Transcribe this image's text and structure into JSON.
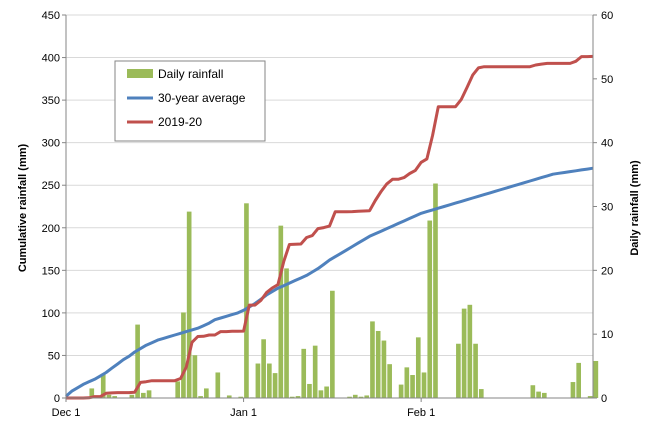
{
  "chart_data": {
    "type": "bar+line",
    "title": "",
    "xlabel": "",
    "ylabel_left": "Cumulative rainfall (mm)",
    "ylabel_right": "Daily rainfall (mm)",
    "x_range_days": [
      0,
      92
    ],
    "ylim_left": [
      0,
      450
    ],
    "ylim_right": [
      0,
      60
    ],
    "yticks_left": [
      "0",
      "50",
      "100",
      "150",
      "200",
      "250",
      "300",
      "350",
      "400",
      "450"
    ],
    "yticks_right": [
      "0",
      "10",
      "20",
      "30",
      "40",
      "50",
      "60"
    ],
    "xticks": [
      {
        "day": 0,
        "label": "Dec 1"
      },
      {
        "day": 31,
        "label": "Jan 1"
      },
      {
        "day": 62,
        "label": "Feb 1"
      }
    ],
    "grid": "horizontal",
    "legend_position": "top-left",
    "legend": [
      "Daily rainfall",
      "30-year average",
      "2019-20"
    ],
    "colors": {
      "bars": "#9bbb59",
      "average": "#4f81bd",
      "season": "#c0504d",
      "grid": "#d9d9d9",
      "axis": "#868686"
    },
    "series": [
      {
        "name": "Daily rainfall",
        "axis": "right",
        "kind": "bar",
        "values": [
          0,
          0,
          0,
          0.2,
          1.5,
          0,
          3.8,
          0.5,
          0.3,
          0,
          0,
          0.5,
          11.5,
          0.8,
          1.2,
          0,
          0,
          0,
          0,
          2.6,
          13.4,
          29.2,
          6.7,
          0.3,
          1.5,
          0,
          4.0,
          0,
          0.4,
          0,
          0.2,
          30.5,
          0.1,
          5.4,
          9.2,
          5.4,
          3.9,
          27.0,
          20.3,
          0.2,
          0.3,
          7.7,
          2.2,
          8.2,
          1.2,
          1.8,
          16.8,
          0,
          0,
          0.2,
          0.5,
          0.2,
          0.4,
          12.0,
          10.5,
          9.0,
          5.3,
          0,
          2.1,
          4.8,
          3.6,
          9.5,
          4.0,
          27.8,
          33.6,
          0,
          0,
          0,
          8.5,
          14.0,
          14.6,
          8.5,
          1.4,
          0,
          0,
          0,
          0,
          0,
          0,
          0,
          0,
          2.0,
          1.0,
          0.8,
          0,
          0,
          0,
          0,
          2.5,
          5.5,
          0,
          0.3,
          5.8
        ]
      },
      {
        "name": "30-year average",
        "axis": "left",
        "kind": "line",
        "points": [
          [
            0,
            2
          ],
          [
            1,
            8
          ],
          [
            2,
            12
          ],
          [
            3,
            16
          ],
          [
            4,
            19
          ],
          [
            5,
            22
          ],
          [
            6,
            26
          ],
          [
            7,
            30
          ],
          [
            8,
            35
          ],
          [
            9,
            40
          ],
          [
            10,
            45
          ],
          [
            11,
            49
          ],
          [
            12,
            54
          ],
          [
            13,
            58
          ],
          [
            14,
            62
          ],
          [
            15,
            65
          ],
          [
            16,
            68
          ],
          [
            17,
            70
          ],
          [
            18,
            72
          ],
          [
            19,
            74
          ],
          [
            20,
            76
          ],
          [
            21,
            78
          ],
          [
            22,
            80
          ],
          [
            23,
            82
          ],
          [
            24,
            85
          ],
          [
            25,
            88
          ],
          [
            26,
            92
          ],
          [
            27,
            94
          ],
          [
            28,
            96
          ],
          [
            29,
            98
          ],
          [
            30,
            100
          ],
          [
            31,
            103
          ],
          [
            32,
            107
          ],
          [
            33,
            111
          ],
          [
            34,
            116
          ],
          [
            35,
            121
          ],
          [
            36,
            125
          ],
          [
            37,
            129
          ],
          [
            38,
            132
          ],
          [
            39,
            135
          ],
          [
            40,
            138
          ],
          [
            41,
            141
          ],
          [
            42,
            144
          ],
          [
            43,
            148
          ],
          [
            44,
            152
          ],
          [
            45,
            157
          ],
          [
            46,
            162
          ],
          [
            47,
            166
          ],
          [
            48,
            170
          ],
          [
            49,
            174
          ],
          [
            50,
            178
          ],
          [
            51,
            182
          ],
          [
            52,
            186
          ],
          [
            53,
            190
          ],
          [
            54,
            193
          ],
          [
            55,
            196
          ],
          [
            56,
            199
          ],
          [
            57,
            202
          ],
          [
            58,
            205
          ],
          [
            59,
            208
          ],
          [
            60,
            211
          ],
          [
            61,
            214
          ],
          [
            62,
            217
          ],
          [
            63,
            219
          ],
          [
            64,
            221
          ],
          [
            65,
            223
          ],
          [
            66,
            225
          ],
          [
            67,
            227
          ],
          [
            68,
            229
          ],
          [
            69,
            231
          ],
          [
            70,
            233
          ],
          [
            71,
            235
          ],
          [
            72,
            237
          ],
          [
            73,
            239
          ],
          [
            74,
            241
          ],
          [
            75,
            243
          ],
          [
            76,
            245
          ],
          [
            77,
            247
          ],
          [
            78,
            249
          ],
          [
            79,
            251
          ],
          [
            80,
            253
          ],
          [
            81,
            255
          ],
          [
            82,
            257
          ],
          [
            83,
            259
          ],
          [
            84,
            261
          ],
          [
            85,
            263
          ],
          [
            86,
            264
          ],
          [
            87,
            265
          ],
          [
            88,
            266
          ],
          [
            89,
            267
          ],
          [
            90,
            268
          ],
          [
            91,
            269
          ],
          [
            92,
            270
          ]
        ]
      },
      {
        "name": "2019-20",
        "axis": "left",
        "kind": "line",
        "points": [
          [
            0,
            0
          ],
          [
            3,
            0
          ],
          [
            4,
            0.2
          ],
          [
            5,
            1.7
          ],
          [
            6,
            1.7
          ],
          [
            7,
            5.5
          ],
          [
            8,
            6
          ],
          [
            9,
            6.3
          ],
          [
            10,
            6.3
          ],
          [
            11,
            6.3
          ],
          [
            12,
            6.8
          ],
          [
            13,
            18.3
          ],
          [
            14,
            19.1
          ],
          [
            15,
            20.3
          ],
          [
            16,
            20.3
          ],
          [
            17,
            20.3
          ],
          [
            18,
            20.3
          ],
          [
            19,
            20.3
          ],
          [
            20,
            22.9
          ],
          [
            21,
            36.3
          ],
          [
            22,
            65.5
          ],
          [
            23,
            72.2
          ],
          [
            24,
            72.5
          ],
          [
            25,
            74
          ],
          [
            26,
            74
          ],
          [
            27,
            78
          ],
          [
            28,
            78
          ],
          [
            29,
            78.4
          ],
          [
            30,
            78.4
          ],
          [
            31,
            78.6
          ],
          [
            32,
            109.1
          ],
          [
            33,
            109.2
          ],
          [
            34,
            114.6
          ],
          [
            35,
            123.8
          ],
          [
            36,
            129.2
          ],
          [
            37,
            133.1
          ],
          [
            38,
            160.1
          ],
          [
            39,
            180.4
          ],
          [
            40,
            180.6
          ],
          [
            41,
            180.9
          ],
          [
            42,
            188.6
          ],
          [
            43,
            190.8
          ],
          [
            44,
            199
          ],
          [
            45,
            200.2
          ],
          [
            46,
            202
          ],
          [
            47,
            218.8
          ],
          [
            48,
            218.8
          ],
          [
            49,
            218.8
          ],
          [
            50,
            219
          ],
          [
            51,
            219.5
          ],
          [
            52,
            219.7
          ],
          [
            53,
            220.1
          ],
          [
            54,
            232.1
          ],
          [
            55,
            242.6
          ],
          [
            56,
            251.6
          ],
          [
            57,
            256.9
          ],
          [
            58,
            256.9
          ],
          [
            59,
            259
          ],
          [
            60,
            263.8
          ],
          [
            61,
            267.4
          ],
          [
            62,
            276.9
          ],
          [
            63,
            280.9
          ],
          [
            64,
            308.7
          ],
          [
            65,
            342.3
          ],
          [
            66,
            342.3
          ],
          [
            67,
            342.3
          ],
          [
            68,
            342.3
          ],
          [
            69,
            350.8
          ],
          [
            70,
            364.8
          ],
          [
            71,
            379.4
          ],
          [
            72,
            387.9
          ],
          [
            73,
            389.3
          ],
          [
            74,
            389.3
          ],
          [
            75,
            389.3
          ],
          [
            76,
            389.3
          ],
          [
            77,
            389.3
          ],
          [
            78,
            389.3
          ],
          [
            79,
            389.3
          ],
          [
            80,
            389.3
          ],
          [
            81,
            389.3
          ],
          [
            82,
            391.3
          ],
          [
            83,
            392.3
          ],
          [
            84,
            393.1
          ],
          [
            85,
            393.1
          ],
          [
            86,
            393.1
          ],
          [
            87,
            393.1
          ],
          [
            88,
            393.1
          ],
          [
            89,
            395.6
          ],
          [
            90,
            401.1
          ],
          [
            91,
            401.1
          ],
          [
            92,
            401.4
          ]
        ]
      }
    ]
  }
}
